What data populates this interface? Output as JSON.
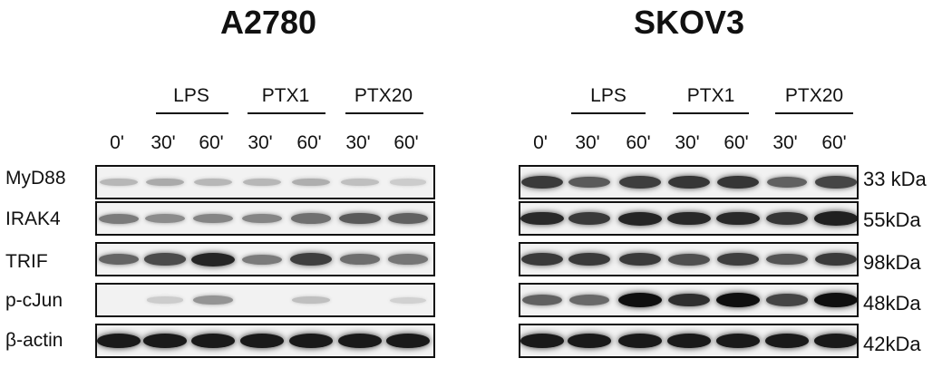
{
  "panels": [
    {
      "title": "A2780",
      "groups": [
        "LPS",
        "PTX1",
        "PTX20"
      ],
      "lanes": [
        "0'",
        "30'",
        "60'",
        "30'",
        "60'",
        "30'",
        "60'"
      ],
      "intensities": [
        [
          0.22,
          0.28,
          0.22,
          0.22,
          0.26,
          0.18,
          0.12
        ],
        [
          0.5,
          0.42,
          0.45,
          0.45,
          0.55,
          0.65,
          0.62
        ],
        [
          0.6,
          0.72,
          0.9,
          0.5,
          0.78,
          0.56,
          0.52
        ],
        [
          0.0,
          0.12,
          0.38,
          0.0,
          0.18,
          0.0,
          0.1
        ],
        [
          0.95,
          0.95,
          0.95,
          0.95,
          0.95,
          0.95,
          0.95
        ]
      ]
    },
    {
      "title": "SKOV3",
      "groups": [
        "LPS",
        "PTX1",
        "PTX20"
      ],
      "lanes": [
        "0'",
        "30'",
        "60'",
        "30'",
        "60'",
        "30'",
        "60'"
      ],
      "intensities": [
        [
          0.8,
          0.65,
          0.78,
          0.82,
          0.82,
          0.62,
          0.75
        ],
        [
          0.88,
          0.8,
          0.9,
          0.88,
          0.88,
          0.82,
          0.92
        ],
        [
          0.8,
          0.8,
          0.8,
          0.7,
          0.78,
          0.68,
          0.8
        ],
        [
          0.62,
          0.58,
          1.0,
          0.85,
          1.0,
          0.75,
          1.0
        ],
        [
          0.95,
          0.95,
          0.95,
          0.95,
          0.95,
          0.95,
          0.95
        ]
      ]
    }
  ],
  "proteins": [
    "MyD88",
    "IRAK4",
    "TRIF",
    "p-cJun",
    "β-actin"
  ],
  "kda": [
    "33 kDa",
    "55kDa",
    "98kDa",
    "48kDa",
    "42kDa"
  ]
}
